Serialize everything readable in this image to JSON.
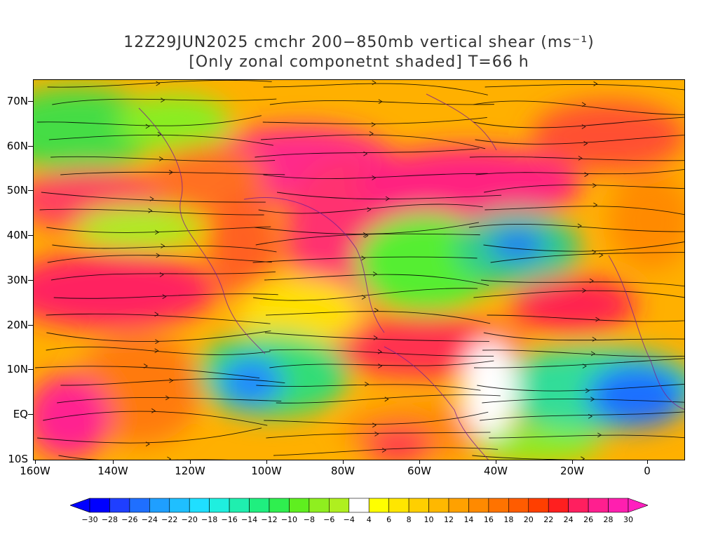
{
  "title": {
    "line1": "12Z29JUN2025 cmchr 200−850mb vertical shear (ms⁻¹)",
    "line2": "[Only zonal componetnt shaded] T=66 h"
  },
  "map": {
    "lat_labels": [
      "70N",
      "60N",
      "50N",
      "40N",
      "30N",
      "20N",
      "10N",
      "EQ",
      "10S"
    ],
    "lon_labels": [
      "160W",
      "140W",
      "120W",
      "100W",
      "80W",
      "60W",
      "40W",
      "20W",
      "0"
    ],
    "lat_range": [
      -10,
      75
    ],
    "lon_range": [
      -160,
      10
    ]
  },
  "colorbar": {
    "labels": [
      "−30",
      "−28",
      "−26",
      "−24",
      "−22",
      "−20",
      "−18",
      "−16",
      "−14",
      "−12",
      "−10",
      "−8",
      "−6",
      "−4",
      "4",
      "6",
      "8",
      "10",
      "12",
      "14",
      "16",
      "18",
      "20",
      "22",
      "24",
      "26",
      "28",
      "30"
    ],
    "colors": [
      "#0000ff",
      "#1f3fff",
      "#1f6fff",
      "#1f9fff",
      "#1fbfff",
      "#1fdfff",
      "#1fefdf",
      "#1fefaf",
      "#1fef7f",
      "#2fef4f",
      "#5fef1f",
      "#8fef1f",
      "#afef1f",
      "#ffffff",
      "#ffff00",
      "#ffe600",
      "#ffcf00",
      "#ffb800",
      "#ffa100",
      "#ff8a00",
      "#ff7300",
      "#ff5c00",
      "#ff3f00",
      "#ff1f1f",
      "#ff1f5f",
      "#ff1f8f",
      "#ff1faf"
    ],
    "under_color": "#0000ff",
    "over_color": "#ff1fbf"
  }
}
